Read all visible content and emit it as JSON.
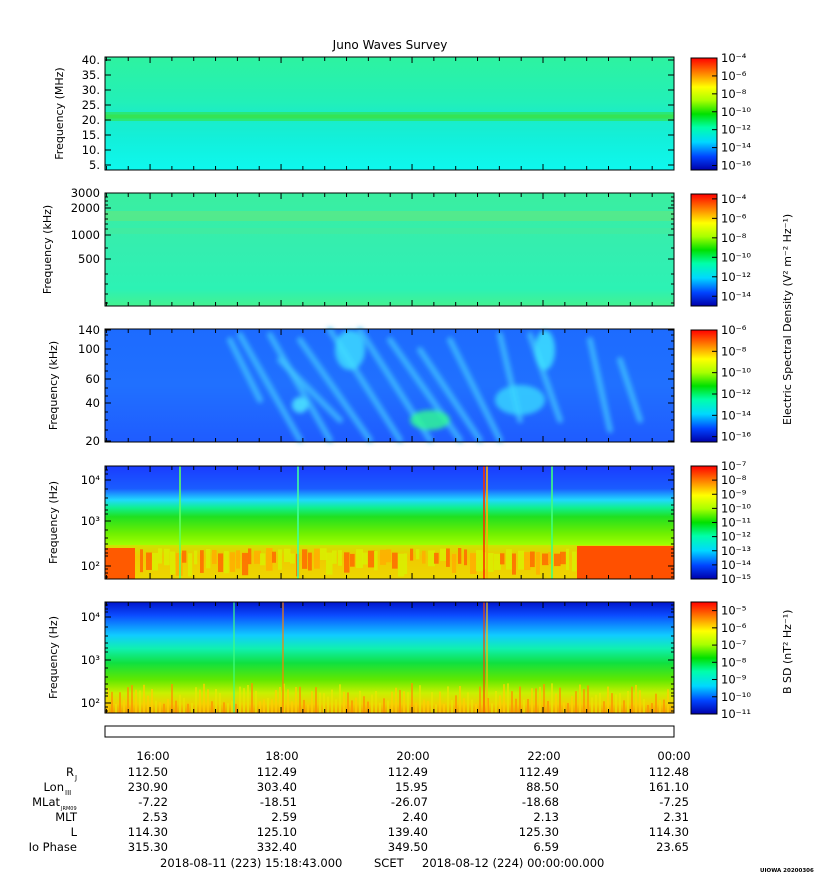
{
  "chart_data": {
    "type": "heatmap",
    "title": "Juno Waves Survey",
    "panels": [
      {
        "ylabel": "Frequency (MHz)",
        "yticks": [
          "40.",
          "35.",
          "30.",
          "25.",
          "20.",
          "15.",
          "10.",
          "5."
        ],
        "yrange": [
          3.5,
          41.5
        ],
        "colorbar": {
          "ticks": [
            "10⁻⁴",
            "10⁻⁶",
            "10⁻⁸",
            "10⁻¹⁰",
            "10⁻¹²",
            "10⁻¹⁴",
            "10⁻¹⁶"
          ],
          "range": [
            -16.5,
            -4
          ]
        }
      },
      {
        "ylabel": "Frequency (kHz)",
        "yticks": [
          "3000",
          "2000",
          "1000",
          "500"
        ],
        "log_scale": true,
        "colorbar": {
          "ticks": [
            "10⁻⁴",
            "10⁻⁶",
            "10⁻⁸",
            "10⁻¹⁰",
            "10⁻¹²",
            "10⁻¹⁴"
          ],
          "range": [
            -15,
            -3.5
          ]
        }
      },
      {
        "ylabel": "Frequency (kHz)",
        "yticks": [
          "140",
          "100",
          "60",
          "40",
          "20"
        ],
        "log_scale": true,
        "colorbar": {
          "ticks": [
            "10⁻⁶",
            "10⁻⁸",
            "10⁻¹⁰",
            "10⁻¹²",
            "10⁻¹⁴",
            "10⁻¹⁶"
          ],
          "range": [
            -16.5,
            -6
          ]
        }
      },
      {
        "ylabel": "Frequency (Hz)",
        "yticks": [
          "10⁴",
          "10³",
          "10²"
        ],
        "log_scale": true,
        "colorbar": {
          "ticks": [
            "10⁻⁷",
            "10⁻⁸",
            "10⁻⁹",
            "10⁻¹⁰",
            "10⁻¹¹",
            "10⁻¹²",
            "10⁻¹³",
            "10⁻¹⁴",
            "10⁻¹⁵"
          ],
          "range": [
            -15,
            -7
          ]
        }
      },
      {
        "ylabel": "Frequency (Hz)",
        "yticks": [
          "10⁴",
          "10³",
          "10²"
        ],
        "log_scale": true,
        "colorbar": {
          "ticks": [
            "10⁻⁵",
            "10⁻⁶",
            "10⁻⁷",
            "10⁻⁸",
            "10⁻⁹",
            "10⁻¹⁰",
            "10⁻¹¹"
          ],
          "range": [
            -11,
            -4.5
          ]
        }
      }
    ],
    "colorbar_labels": {
      "electric": "Electric Spectral Density (V² m⁻² Hz⁻¹)",
      "magnetic": "B SD (nT² Hz⁻¹)"
    },
    "x_ticks": [
      "16:00",
      "18:00",
      "20:00",
      "22:00",
      "00:00"
    ],
    "ephemeris": [
      {
        "label": "R",
        "sub": "J",
        "values": [
          "112.50",
          "112.49",
          "112.49",
          "112.49",
          "112.48"
        ]
      },
      {
        "label": "Lon",
        "sub": "III",
        "values": [
          "230.90",
          "303.40",
          "15.95",
          "88.50",
          "161.10"
        ]
      },
      {
        "label": "MLat",
        "sub": "JRM09",
        "values": [
          "-7.22",
          "-18.51",
          "-26.07",
          "-18.68",
          "-7.25"
        ]
      },
      {
        "label": "MLT",
        "sub": "",
        "values": [
          "2.53",
          "2.59",
          "2.40",
          "2.13",
          "2.31"
        ]
      },
      {
        "label": "L",
        "sub": "",
        "values": [
          "114.30",
          "125.10",
          "139.40",
          "125.30",
          "114.30"
        ]
      },
      {
        "label": "Io Phase",
        "sub": "",
        "values": [
          "315.30",
          "332.40",
          "349.50",
          "6.59",
          "23.65"
        ]
      }
    ],
    "footer": {
      "start": "2018-08-11 (223) 15:18:43.000",
      "scet": "SCET",
      "end": "2018-08-12 (224) 00:00:00.000"
    },
    "stamp": "UIOWA 20200306"
  }
}
